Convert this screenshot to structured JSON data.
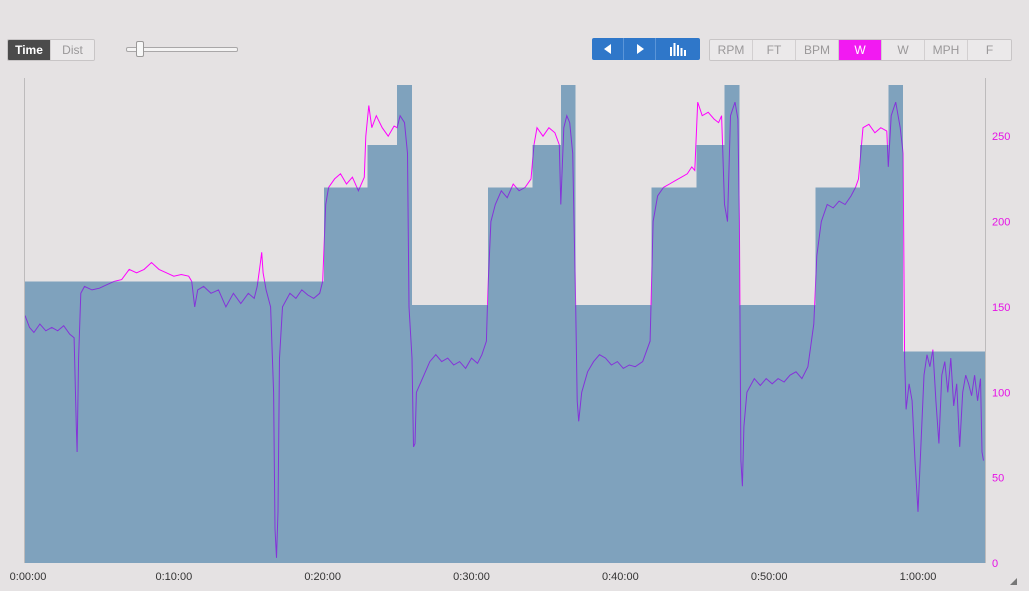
{
  "toolbar": {
    "view_options": [
      {
        "label": "Time",
        "active": true
      },
      {
        "label": "Dist",
        "active": false
      }
    ],
    "zoom_level": 0.1,
    "unit_options": [
      {
        "label": "RPM",
        "active": false
      },
      {
        "label": "FT",
        "active": false
      },
      {
        "label": "BPM",
        "active": false
      },
      {
        "label": "W",
        "active": true
      },
      {
        "label": "W",
        "active": false
      },
      {
        "label": "MPH",
        "active": false
      },
      {
        "label": "F",
        "active": false
      }
    ]
  },
  "colors": {
    "target_fill": "#7fa2bd",
    "above_target": "#ff00ff",
    "power_line": "#8533d9",
    "axis_label": "#e611e6",
    "nav_button": "#2f77c9",
    "active_unit": "#f21af2"
  },
  "chart_data": {
    "type": "area",
    "title": "",
    "xlabel": "",
    "ylabel": "",
    "xlim_min": [
      0,
      64.5
    ],
    "ylim": [
      0,
      280
    ],
    "x_ticks": [
      {
        "v": 0,
        "label": "0:00:00"
      },
      {
        "v": 10,
        "label": "0:10:00"
      },
      {
        "v": 20,
        "label": "0:20:00"
      },
      {
        "v": 30,
        "label": "0:30:00"
      },
      {
        "v": 40,
        "label": "0:40:00"
      },
      {
        "v": 50,
        "label": "0:50:00"
      },
      {
        "v": 60,
        "label": "1:00:00"
      }
    ],
    "y_ticks": [
      {
        "v": 0,
        "label": "0"
      },
      {
        "v": 50,
        "label": "50"
      },
      {
        "v": 100,
        "label": "100"
      },
      {
        "v": 150,
        "label": "150"
      },
      {
        "v": 200,
        "label": "200"
      },
      {
        "v": 250,
        "label": "250"
      }
    ],
    "series": [
      {
        "role": "target",
        "steps": [
          {
            "start": 0,
            "end": 20.1,
            "watts": 165
          },
          {
            "start": 20.1,
            "end": 23.0,
            "watts": 220
          },
          {
            "start": 23.0,
            "end": 25.0,
            "watts": 245
          },
          {
            "start": 25.0,
            "end": 26.0,
            "watts": 280
          },
          {
            "start": 26.0,
            "end": 31.1,
            "watts": 151
          },
          {
            "start": 31.1,
            "end": 34.1,
            "watts": 220
          },
          {
            "start": 34.1,
            "end": 36.0,
            "watts": 245
          },
          {
            "start": 36.0,
            "end": 37.0,
            "watts": 280
          },
          {
            "start": 37.0,
            "end": 42.1,
            "watts": 151
          },
          {
            "start": 42.1,
            "end": 45.1,
            "watts": 220
          },
          {
            "start": 45.1,
            "end": 47.0,
            "watts": 245
          },
          {
            "start": 47.0,
            "end": 48.0,
            "watts": 280
          },
          {
            "start": 48.0,
            "end": 53.1,
            "watts": 151
          },
          {
            "start": 53.1,
            "end": 56.1,
            "watts": 220
          },
          {
            "start": 56.1,
            "end": 58.0,
            "watts": 245
          },
          {
            "start": 58.0,
            "end": 59.0,
            "watts": 280
          },
          {
            "start": 59.0,
            "end": 64.5,
            "watts": 124
          }
        ]
      },
      {
        "role": "power",
        "points": [
          [
            0,
            145
          ],
          [
            0.3,
            138
          ],
          [
            0.6,
            135
          ],
          [
            1.0,
            140
          ],
          [
            1.4,
            136
          ],
          [
            1.8,
            138
          ],
          [
            2.2,
            136
          ],
          [
            2.6,
            139
          ],
          [
            3.0,
            134
          ],
          [
            3.3,
            132
          ],
          [
            3.45,
            80
          ],
          [
            3.5,
            65
          ],
          [
            3.6,
            120
          ],
          [
            3.75,
            158
          ],
          [
            4.0,
            162
          ],
          [
            4.5,
            160
          ],
          [
            5.0,
            161
          ],
          [
            5.5,
            163
          ],
          [
            6.0,
            165
          ],
          [
            6.5,
            166
          ],
          [
            7.0,
            172
          ],
          [
            7.5,
            170
          ],
          [
            8.0,
            172
          ],
          [
            8.5,
            176
          ],
          [
            9.0,
            172
          ],
          [
            9.5,
            170
          ],
          [
            10.0,
            168
          ],
          [
            10.5,
            169
          ],
          [
            11.0,
            168
          ],
          [
            11.2,
            165
          ],
          [
            11.4,
            150
          ],
          [
            11.6,
            160
          ],
          [
            12.0,
            162
          ],
          [
            12.5,
            158
          ],
          [
            13.0,
            160
          ],
          [
            13.5,
            150
          ],
          [
            14.0,
            158
          ],
          [
            14.5,
            152
          ],
          [
            15.0,
            158
          ],
          [
            15.4,
            155
          ],
          [
            15.6,
            162
          ],
          [
            15.8,
            175
          ],
          [
            15.9,
            182
          ],
          [
            16.0,
            170
          ],
          [
            16.2,
            160
          ],
          [
            16.5,
            150
          ],
          [
            16.7,
            100
          ],
          [
            16.8,
            20
          ],
          [
            16.9,
            3
          ],
          [
            17.0,
            30
          ],
          [
            17.1,
            120
          ],
          [
            17.3,
            150
          ],
          [
            17.8,
            158
          ],
          [
            18.2,
            155
          ],
          [
            18.6,
            160
          ],
          [
            19.0,
            157
          ],
          [
            19.4,
            155
          ],
          [
            19.8,
            158
          ],
          [
            20.0,
            165
          ],
          [
            20.2,
            210
          ],
          [
            20.4,
            220
          ],
          [
            20.8,
            225
          ],
          [
            21.2,
            228
          ],
          [
            21.6,
            222
          ],
          [
            22.0,
            226
          ],
          [
            22.4,
            218
          ],
          [
            22.8,
            226
          ],
          [
            22.9,
            250
          ],
          [
            23.1,
            268
          ],
          [
            23.3,
            255
          ],
          [
            23.6,
            262
          ],
          [
            24.0,
            255
          ],
          [
            24.4,
            250
          ],
          [
            24.8,
            256
          ],
          [
            25.0,
            255
          ],
          [
            25.2,
            262
          ],
          [
            25.5,
            258
          ],
          [
            25.7,
            240
          ],
          [
            25.8,
            150
          ],
          [
            26.0,
            120
          ],
          [
            26.1,
            68
          ],
          [
            26.2,
            70
          ],
          [
            26.3,
            100
          ],
          [
            26.8,
            110
          ],
          [
            27.2,
            118
          ],
          [
            27.6,
            122
          ],
          [
            28.0,
            118
          ],
          [
            28.4,
            120
          ],
          [
            28.8,
            116
          ],
          [
            29.2,
            118
          ],
          [
            29.6,
            114
          ],
          [
            30.0,
            120
          ],
          [
            30.4,
            117
          ],
          [
            30.7,
            122
          ],
          [
            31.0,
            130
          ],
          [
            31.1,
            160
          ],
          [
            31.3,
            200
          ],
          [
            31.6,
            210
          ],
          [
            32.0,
            218
          ],
          [
            32.4,
            214
          ],
          [
            32.8,
            222
          ],
          [
            33.2,
            218
          ],
          [
            33.6,
            220
          ],
          [
            34.0,
            225
          ],
          [
            34.2,
            245
          ],
          [
            34.4,
            255
          ],
          [
            34.8,
            250
          ],
          [
            35.2,
            255
          ],
          [
            35.6,
            252
          ],
          [
            35.9,
            245
          ],
          [
            36.0,
            210
          ],
          [
            36.2,
            255
          ],
          [
            36.4,
            262
          ],
          [
            36.6,
            258
          ],
          [
            36.8,
            240
          ],
          [
            37.0,
            150
          ],
          [
            37.1,
            95
          ],
          [
            37.2,
            83
          ],
          [
            37.4,
            100
          ],
          [
            37.8,
            112
          ],
          [
            38.2,
            118
          ],
          [
            38.6,
            122
          ],
          [
            39.0,
            120
          ],
          [
            39.4,
            116
          ],
          [
            39.8,
            118
          ],
          [
            40.2,
            114
          ],
          [
            40.6,
            116
          ],
          [
            41.0,
            115
          ],
          [
            41.5,
            118
          ],
          [
            42.0,
            130
          ],
          [
            42.2,
            200
          ],
          [
            42.5,
            215
          ],
          [
            42.9,
            220
          ],
          [
            43.3,
            222
          ],
          [
            43.7,
            224
          ],
          [
            44.1,
            226
          ],
          [
            44.5,
            228
          ],
          [
            44.8,
            232
          ],
          [
            45.0,
            230
          ],
          [
            45.2,
            270
          ],
          [
            45.5,
            262
          ],
          [
            45.9,
            264
          ],
          [
            46.3,
            260
          ],
          [
            46.6,
            258
          ],
          [
            46.8,
            262
          ],
          [
            47.0,
            210
          ],
          [
            47.2,
            200
          ],
          [
            47.4,
            262
          ],
          [
            47.7,
            270
          ],
          [
            47.9,
            260
          ],
          [
            48.0,
            200
          ],
          [
            48.1,
            60
          ],
          [
            48.2,
            45
          ],
          [
            48.3,
            80
          ],
          [
            48.5,
            100
          ],
          [
            49.0,
            108
          ],
          [
            49.4,
            104
          ],
          [
            49.8,
            108
          ],
          [
            50.2,
            105
          ],
          [
            50.6,
            108
          ],
          [
            51.0,
            106
          ],
          [
            51.4,
            110
          ],
          [
            51.8,
            112
          ],
          [
            52.2,
            108
          ],
          [
            52.6,
            115
          ],
          [
            53.0,
            140
          ],
          [
            53.2,
            180
          ],
          [
            53.5,
            200
          ],
          [
            53.9,
            210
          ],
          [
            54.3,
            208
          ],
          [
            54.7,
            212
          ],
          [
            55.1,
            210
          ],
          [
            55.5,
            215
          ],
          [
            55.8,
            220
          ],
          [
            56.0,
            225
          ],
          [
            56.3,
            255
          ],
          [
            56.7,
            257
          ],
          [
            57.1,
            252
          ],
          [
            57.5,
            255
          ],
          [
            57.9,
            253
          ],
          [
            58.0,
            232
          ],
          [
            58.2,
            262
          ],
          [
            58.5,
            270
          ],
          [
            58.8,
            255
          ],
          [
            59.0,
            240
          ],
          [
            59.1,
            120
          ],
          [
            59.2,
            90
          ],
          [
            59.4,
            105
          ],
          [
            59.6,
            95
          ],
          [
            59.8,
            60
          ],
          [
            60.0,
            30
          ],
          [
            60.2,
            70
          ],
          [
            60.4,
            110
          ],
          [
            60.6,
            122
          ],
          [
            60.8,
            115
          ],
          [
            61.0,
            125
          ],
          [
            61.2,
            95
          ],
          [
            61.4,
            70
          ],
          [
            61.6,
            110
          ],
          [
            61.8,
            118
          ],
          [
            62.0,
            100
          ],
          [
            62.2,
            120
          ],
          [
            62.4,
            92
          ],
          [
            62.6,
            105
          ],
          [
            62.8,
            68
          ],
          [
            63.0,
            100
          ],
          [
            63.2,
            110
          ],
          [
            63.4,
            105
          ],
          [
            63.6,
            98
          ],
          [
            63.8,
            110
          ],
          [
            64.0,
            95
          ],
          [
            64.2,
            108
          ],
          [
            64.3,
            65
          ],
          [
            64.4,
            60
          ]
        ]
      }
    ],
    "legend": "none",
    "grid": false
  }
}
